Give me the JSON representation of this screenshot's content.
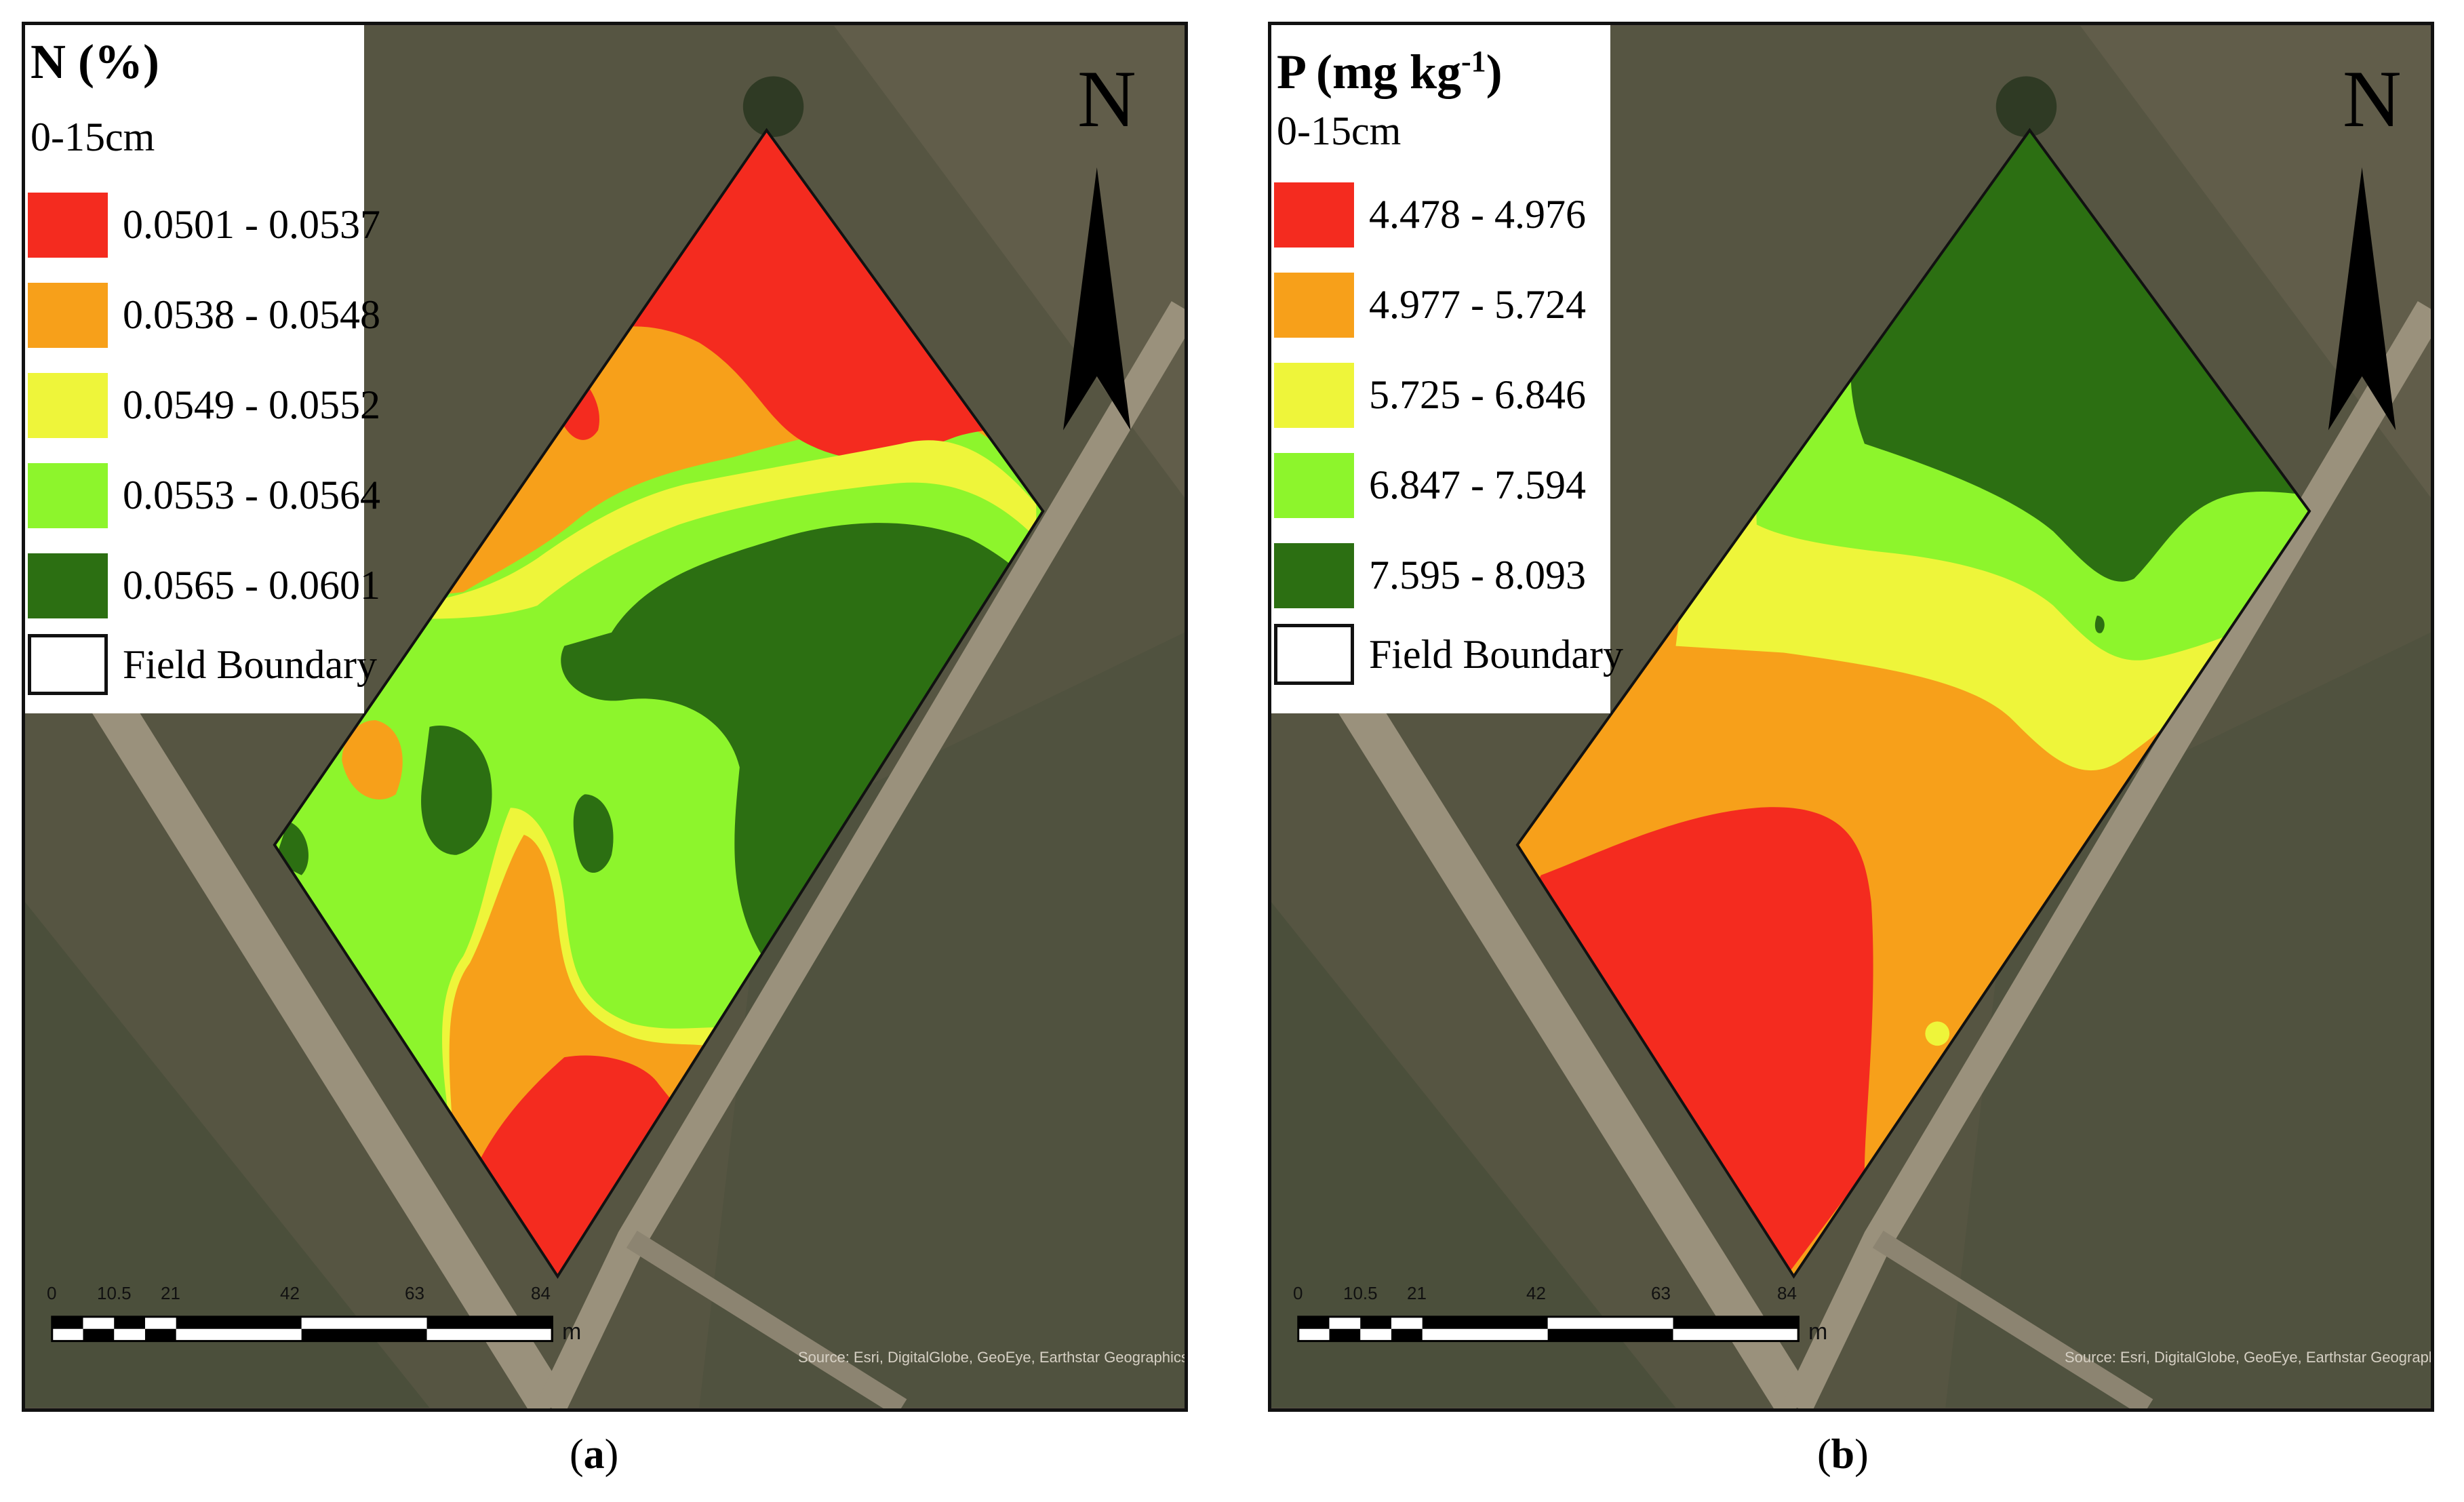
{
  "panels": [
    {
      "id": "a",
      "legend": {
        "title": "N (%)",
        "depth": "0-15cm",
        "classes": [
          {
            "label": "0.0501 - 0.0537",
            "color": "#f42b1f"
          },
          {
            "label": "0.0538 - 0.0548",
            "color": "#f7a01a"
          },
          {
            "label": "0.0549 - 0.0552",
            "color": "#eef53a"
          },
          {
            "label": "0.0553 - 0.0564",
            "color": "#8df52c"
          },
          {
            "label": "0.0565 - 0.0601",
            "color": "#2c6f12"
          }
        ],
        "boundary_label": "Field Boundary"
      },
      "north": "N",
      "scale": {
        "ticks": [
          "0",
          "10.5",
          "21",
          "42",
          "63",
          "84"
        ],
        "unit": "m"
      },
      "attribution": "Source: Esri, DigitalGlobe, GeoEye, Earthstar Geographics",
      "caption_letter": "a"
    },
    {
      "id": "b",
      "legend": {
        "title": "P (mg kg",
        "title_sup": "-1",
        "title_end": ")",
        "depth": "0-15cm",
        "classes": [
          {
            "label": "4.478 - 4.976",
            "color": "#f42b1f"
          },
          {
            "label": "4.977 - 5.724",
            "color": "#f7a01a"
          },
          {
            "label": "5.725 - 6.846",
            "color": "#eef53a"
          },
          {
            "label": "6.847 - 7.594",
            "color": "#8df52c"
          },
          {
            "label": "7.595 - 8.093",
            "color": "#2c6f12"
          }
        ],
        "boundary_label": "Field Boundary"
      },
      "north": "N",
      "scale": {
        "ticks": [
          "0",
          "10.5",
          "21",
          "42",
          "63",
          "84"
        ],
        "unit": "m"
      },
      "attribution": "Source: Esri, DigitalGlobe, GeoEye, Earthstar Geographics",
      "caption_letter": "b"
    }
  ],
  "colors": {
    "red": "#f42b1f",
    "orange": "#f7a01a",
    "yellow": "#eef53a",
    "lightgreen": "#8df52c",
    "darkgreen": "#2c6f12"
  }
}
